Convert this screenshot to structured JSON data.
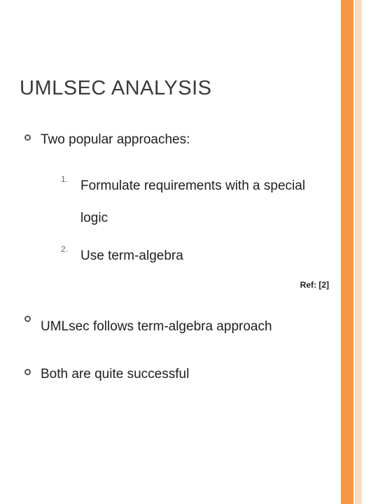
{
  "title": "UMLSEC ANALYSIS",
  "bullets": {
    "b1": "Two popular approaches:",
    "b2": "UMLsec follows term-algebra approach",
    "b3": "Both are quite successful"
  },
  "numlist": {
    "n1_marker": "1.",
    "n1_text": "Formulate requirements with a special logic",
    "n2_marker": "2.",
    "n2_text": "Use term-algebra"
  },
  "ref": "Ref: [2]",
  "colors": {
    "accent_dark": "#f79646",
    "accent_light": "#fcd9c0"
  }
}
